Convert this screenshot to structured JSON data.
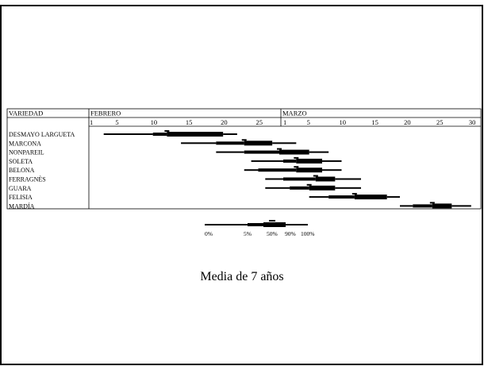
{
  "chart_data": {
    "type": "gantt",
    "caption": "Media de 7 años",
    "header": {
      "row_label": "VARIEDAD",
      "months": [
        {
          "name": "FEBRERO",
          "ticks": [
            "1",
            "5",
            "10",
            "15",
            "20",
            "25"
          ]
        },
        {
          "name": "MARZO",
          "ticks": [
            "1",
            "5",
            "10",
            "15",
            "20",
            "25",
            "30"
          ]
        }
      ]
    },
    "x_unit": "día",
    "varieties": [
      {
        "name": "DESMAYO LARGUETA",
        "bars": [
          [
            3,
            10
          ],
          [
            10,
            12
          ],
          [
            12,
            20
          ],
          [
            20,
            22
          ]
        ]
      },
      {
        "name": "MARCONA",
        "bars": [
          [
            14,
            19
          ],
          [
            19,
            23
          ],
          [
            23,
            27
          ],
          [
            27,
            31
          ]
        ]
      },
      {
        "name": "NONPAREIL",
        "bars": [
          [
            19,
            23
          ],
          [
            23,
            28
          ],
          [
            28,
            33
          ],
          [
            33,
            36
          ]
        ]
      },
      {
        "name": "SOLETA",
        "bars": [
          [
            24,
            29
          ],
          [
            29,
            31
          ],
          [
            31,
            35
          ],
          [
            35,
            38
          ]
        ]
      },
      {
        "name": "BELONA",
        "bars": [
          [
            23,
            25
          ],
          [
            25,
            31
          ],
          [
            31,
            35
          ],
          [
            35,
            38
          ]
        ]
      },
      {
        "name": "FERRAGNÈS",
        "bars": [
          [
            26,
            29
          ],
          [
            29,
            34
          ],
          [
            34,
            37
          ],
          [
            37,
            41
          ]
        ]
      },
      {
        "name": "GUARA",
        "bars": [
          [
            26,
            30
          ],
          [
            30,
            33
          ],
          [
            33,
            37
          ],
          [
            37,
            41
          ]
        ]
      },
      {
        "name": "FELISIA",
        "bars": [
          [
            33,
            36
          ],
          [
            36,
            40
          ],
          [
            40,
            45
          ],
          [
            45,
            47
          ]
        ]
      },
      {
        "name": "MARDÍA",
        "bars": [
          [
            47,
            49
          ],
          [
            49,
            52
          ],
          [
            52,
            55
          ],
          [
            55,
            58
          ]
        ]
      }
    ],
    "legend": {
      "labels": [
        "0%",
        "5%",
        "50%",
        "90%",
        "100%"
      ]
    }
  }
}
